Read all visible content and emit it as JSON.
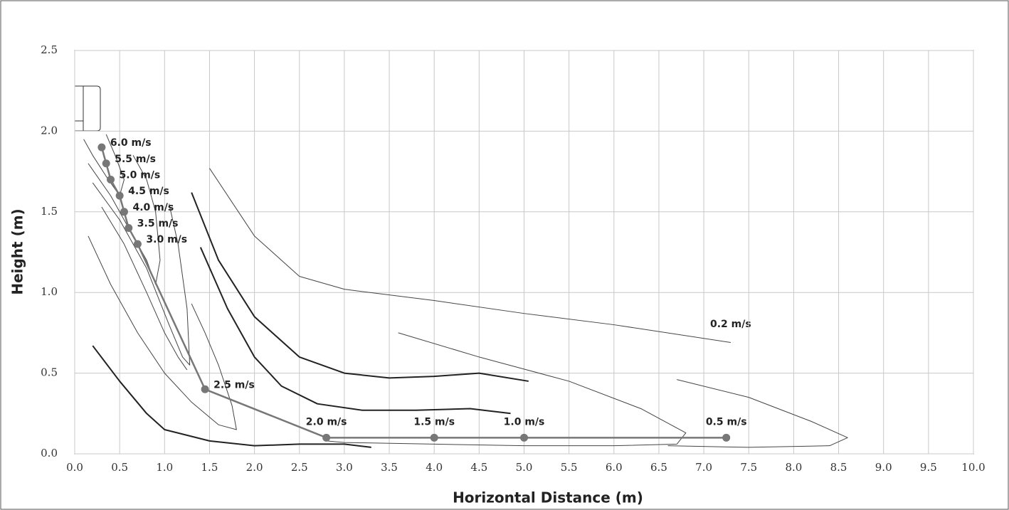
{
  "chart_data": {
    "type": "line",
    "x_label": "Horizontal Distance (m)",
    "y_label": "Height (m)",
    "xlim": [
      0,
      10
    ],
    "ylim": [
      0,
      2.5
    ],
    "grid": true,
    "xticks": [
      {
        "value": 0,
        "label": "0.0"
      },
      0.5,
      {
        "value": 1,
        "label": "1.0"
      },
      1.5,
      {
        "value": 2,
        "label": "2.0"
      },
      2.5,
      {
        "value": 3,
        "label": "3.0"
      },
      3.5,
      {
        "value": 4,
        "label": "4.0"
      },
      4.5,
      {
        "value": 5,
        "label": "5.0"
      },
      5.5,
      {
        "value": 6,
        "label": "6.0"
      },
      6.5,
      {
        "value": 7,
        "label": "7.0"
      },
      7.5,
      {
        "value": 8,
        "label": "8.0"
      },
      8.5,
      {
        "value": 9,
        "label": "9.0"
      },
      9.5,
      {
        "value": 10,
        "label": "10.0"
      }
    ],
    "yticks": [
      {
        "value": 0,
        "label": "0.0"
      },
      0.5,
      {
        "value": 1,
        "label": "1.0"
      },
      1.5,
      {
        "value": 2,
        "label": "2.0"
      },
      2.5
    ],
    "series": [
      {
        "color": "#777777",
        "line_width": 2.5,
        "markers": true,
        "x": [
          0.3,
          0.35,
          0.4,
          0.5,
          0.55,
          0.6,
          0.7,
          1.45,
          2.8,
          4.0,
          5.0,
          7.25
        ],
        "y": [
          1.9,
          1.8,
          1.7,
          1.6,
          1.5,
          1.4,
          1.3,
          0.4,
          0.1,
          0.1,
          0.1,
          0.1
        ],
        "labels": [
          "6.0 m/s",
          "5.5 m/s",
          "5.0 m/s",
          "4.5 m/s",
          "4.0 m/s",
          "3.5 m/s",
          "3.0 m/s",
          "2.5 m/s",
          "2.0 m/s",
          "1.5 m/s",
          "1.0 m/s",
          "0.5 m/s"
        ]
      },
      {
        "color": "#444444",
        "line_width": 1,
        "x": [
          0.1,
          0.2,
          0.35,
          0.5,
          0.55,
          0.45,
          0.35
        ],
        "y": [
          1.95,
          1.85,
          1.72,
          1.6,
          1.7,
          1.85,
          1.98
        ]
      },
      {
        "color": "#444444",
        "line_width": 1,
        "x": [
          0.15,
          0.4,
          0.6,
          0.8,
          0.9,
          0.95,
          0.9,
          0.8,
          0.65
        ],
        "y": [
          1.8,
          1.6,
          1.4,
          1.2,
          1.05,
          1.2,
          1.5,
          1.7,
          1.85
        ]
      },
      {
        "color": "#444444",
        "line_width": 1,
        "x": [
          0.2,
          0.5,
          0.8,
          1.05,
          1.2,
          1.28,
          1.25,
          1.15,
          1.05
        ],
        "y": [
          1.68,
          1.45,
          1.15,
          0.8,
          0.6,
          0.55,
          0.9,
          1.3,
          1.55
        ]
      },
      {
        "color": "#444444",
        "line_width": 1,
        "x": [
          0.3,
          0.55,
          0.8,
          1.0,
          1.15,
          1.25
        ],
        "y": [
          1.53,
          1.3,
          1.0,
          0.75,
          0.6,
          0.52
        ]
      },
      {
        "color": "#444444",
        "line_width": 1,
        "x": [
          0.15,
          0.4,
          0.7,
          1.0,
          1.3,
          1.6,
          1.8,
          1.75,
          1.6,
          1.45,
          1.3
        ],
        "y": [
          1.35,
          1.05,
          0.75,
          0.5,
          0.32,
          0.18,
          0.15,
          0.3,
          0.55,
          0.75,
          0.93
        ]
      },
      {
        "color": "#222222",
        "line_width": 2,
        "x": [
          0.2,
          0.5,
          0.8,
          1.0,
          1.5,
          2.0,
          2.5,
          3.0,
          3.3
        ],
        "y": [
          0.67,
          0.45,
          0.25,
          0.15,
          0.08,
          0.05,
          0.06,
          0.06,
          0.04
        ]
      },
      {
        "color": "#222222",
        "line_width": 2,
        "x": [
          1.4,
          1.7,
          2.0,
          2.3,
          2.7,
          3.2,
          3.8,
          4.4,
          4.85
        ],
        "y": [
          1.28,
          0.9,
          0.6,
          0.42,
          0.31,
          0.27,
          0.27,
          0.28,
          0.25
        ]
      },
      {
        "color": "#222222",
        "line_width": 2,
        "x": [
          1.3,
          1.6,
          2.0,
          2.5,
          3.0,
          3.5,
          4.0,
          4.5,
          5.05
        ],
        "y": [
          1.62,
          1.2,
          0.85,
          0.6,
          0.5,
          0.47,
          0.48,
          0.5,
          0.45
        ]
      },
      {
        "color": "#444444",
        "line_width": 1,
        "x": [
          3.6,
          4.5,
          5.5,
          6.3,
          6.8,
          6.7,
          6.0,
          5.0,
          4.0,
          3.0,
          2.8
        ],
        "y": [
          0.75,
          0.6,
          0.45,
          0.28,
          0.13,
          0.06,
          0.05,
          0.05,
          0.06,
          0.07,
          0.08
        ]
      },
      {
        "color": "#444444",
        "line_width": 1,
        "x": [
          6.7,
          7.5,
          8.2,
          8.6,
          8.4,
          7.5,
          6.6
        ],
        "y": [
          0.46,
          0.35,
          0.2,
          0.1,
          0.05,
          0.04,
          0.05
        ]
      },
      {
        "color": "#444444",
        "line_width": 1,
        "x": [
          1.5,
          2.0,
          2.5,
          3.0,
          4.0,
          5.0,
          6.0,
          7.3
        ],
        "y": [
          1.77,
          1.35,
          1.1,
          1.02,
          0.95,
          0.87,
          0.8,
          0.69
        ]
      }
    ],
    "annotations": [
      "0.2 m/s"
    ]
  }
}
